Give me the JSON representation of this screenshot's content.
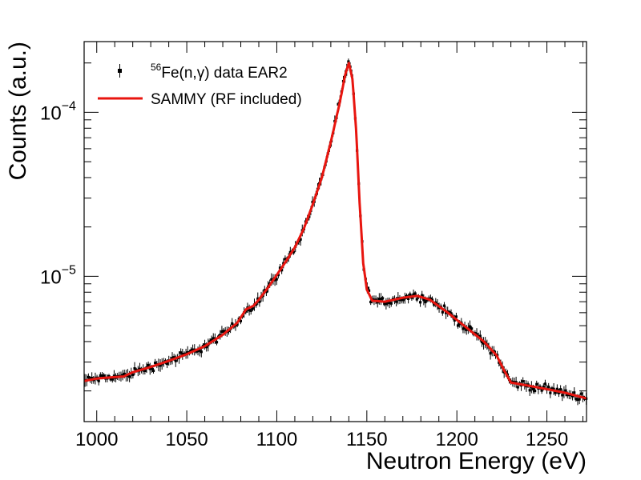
{
  "chart_data": {
    "type": "scatter",
    "title": "",
    "xlabel": "Neutron Energy (eV)",
    "ylabel": "Counts (a.u.)",
    "xlim": [
      993,
      1272
    ],
    "ylim": [
      1.3e-06,
      0.00027
    ],
    "yscale": "log",
    "x_ticks": [
      1000,
      1050,
      1100,
      1150,
      1200,
      1250
    ],
    "x_tick_labels": [
      "1000",
      "1050",
      "1100",
      "1150",
      "1200",
      "1250"
    ],
    "y_ticks": [
      {
        "value": 1e-05,
        "base": "10",
        "exponent": "−5"
      },
      {
        "value": 0.0001,
        "base": "10",
        "exponent": "−4"
      }
    ],
    "legend": {
      "position": "top-left",
      "entries": [
        {
          "sup": "56",
          "label": "Fe(n,γ) data EAR2",
          "marker": "point",
          "color": "#000000"
        },
        {
          "label": "SAMMY (RF included)",
          "marker": "line",
          "color": "#e8150f"
        }
      ]
    },
    "series": [
      {
        "name": "SAMMY (RF included)",
        "style": "line",
        "color": "#e8150f",
        "points": [
          [
            993,
            2.3e-06
          ],
          [
            1000,
            2.38e-06
          ],
          [
            1008,
            2.42e-06
          ],
          [
            1015,
            2.45e-06
          ],
          [
            1020,
            2.6e-06
          ],
          [
            1030,
            2.8e-06
          ],
          [
            1040,
            3.05e-06
          ],
          [
            1050,
            3.35e-06
          ],
          [
            1060,
            3.75e-06
          ],
          [
            1070,
            4.4e-06
          ],
          [
            1078,
            5.2e-06
          ],
          [
            1083,
            6.3e-06
          ],
          [
            1087,
            6.6e-06
          ],
          [
            1090,
            7.2e-06
          ],
          [
            1095,
            8.5e-06
          ],
          [
            1100,
            1.02e-05
          ],
          [
            1105,
            1.23e-05
          ],
          [
            1110,
            1.5e-05
          ],
          [
            1115,
            1.95e-05
          ],
          [
            1120,
            2.75e-05
          ],
          [
            1125,
            4e-05
          ],
          [
            1130,
            6.6e-05
          ],
          [
            1135,
            0.000115
          ],
          [
            1138,
            0.00017
          ],
          [
            1140,
            0.0002
          ],
          [
            1142,
            0.00016
          ],
          [
            1144,
            8e-05
          ],
          [
            1146,
            2.8e-05
          ],
          [
            1148,
            1.2e-05
          ],
          [
            1150,
            8.3e-06
          ],
          [
            1153,
            7.1e-06
          ],
          [
            1160,
            7e-06
          ],
          [
            1170,
            7.4e-06
          ],
          [
            1178,
            7.6e-06
          ],
          [
            1185,
            7.2e-06
          ],
          [
            1195,
            6e-06
          ],
          [
            1205,
            4.9e-06
          ],
          [
            1215,
            4e-06
          ],
          [
            1222,
            3.3e-06
          ],
          [
            1226,
            2.7e-06
          ],
          [
            1230,
            2.25e-06
          ],
          [
            1240,
            2.15e-06
          ],
          [
            1250,
            2.05e-06
          ],
          [
            1260,
            1.95e-06
          ],
          [
            1272,
            1.8e-06
          ]
        ]
      },
      {
        "name": "56Fe(n,γ) data EAR2",
        "style": "points",
        "color": "#000000",
        "scatter_model": "SAMMY curve with ~4% relative scatter and error bars, ~290 points from 993 to 1272 eV"
      }
    ]
  }
}
